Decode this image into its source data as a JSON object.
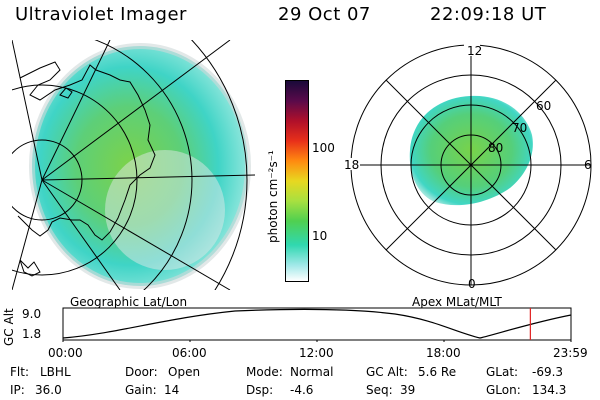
{
  "header": {
    "instrument": "Ultraviolet Imager",
    "date": "29 Oct 07",
    "time": "22:09:18 UT"
  },
  "left_panel": {
    "caption": "Geographic Lat/Lon"
  },
  "right_panel": {
    "caption": "Apex MLat/MLT",
    "mlt_labels": {
      "top": "12",
      "left": "18",
      "right": "6",
      "bottom": "0"
    },
    "mlat_labels": [
      "60",
      "70",
      "80"
    ]
  },
  "colorbar": {
    "unit_label": "photon cm⁻²s⁻¹",
    "ticks": [
      "100",
      "10"
    ]
  },
  "altitude_plot": {
    "ylabel": "GC Alt",
    "y_ticks": [
      "9.0",
      "1.8"
    ],
    "x_ticks": [
      "00:00",
      "06:00",
      "12:00",
      "18:00",
      "23:59"
    ],
    "current_time_fraction": 0.92,
    "marker_color": "#e02020"
  },
  "status": {
    "row1": [
      {
        "label": "Flt:",
        "value": "LBHL"
      },
      {
        "label": "Door:",
        "value": "Open"
      },
      {
        "label": "Mode:",
        "value": "Normal"
      },
      {
        "label": "GC Alt:",
        "value": "5.6 Re"
      },
      {
        "label": "GLat:",
        "value": "-69.3"
      }
    ],
    "row2": [
      {
        "label": "IP:",
        "value": "36.0"
      },
      {
        "label": "Gain:",
        "value": "14"
      },
      {
        "label": "Dsp:",
        "value": "-4.6"
      },
      {
        "label": "Seq:",
        "value": "39"
      },
      {
        "label": "GLon:",
        "value": "134.3"
      }
    ]
  }
}
